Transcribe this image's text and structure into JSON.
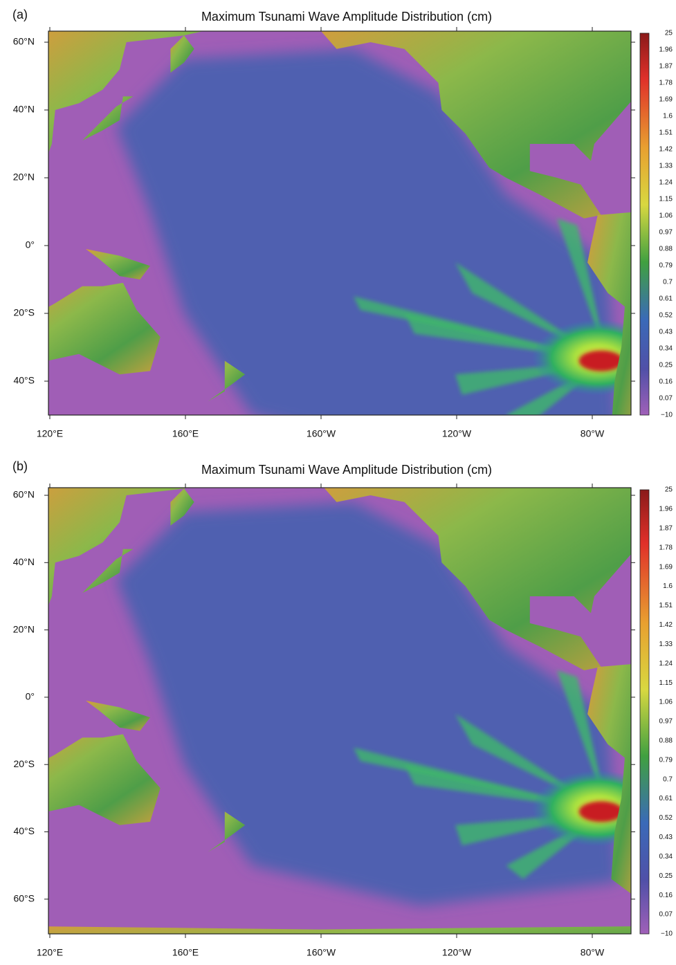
{
  "panels": [
    {
      "label": "(a)",
      "title": "Maximum Tsunami Wave Amplitude Distribution (cm)",
      "lat_labels": [
        "60°N",
        "40°N",
        "20°N",
        "0°",
        "20°S",
        "40°S"
      ],
      "lon_labels": [
        "120°E",
        "160°E",
        "160°W",
        "120°W",
        "80°W"
      ],
      "colorbar_labels": [
        "25",
        "1.96",
        "1.87",
        "1.78",
        "1.69",
        "1.6",
        "1.51",
        "1.42",
        "1.33",
        "1.24",
        "1.15",
        "1.06",
        "0.97",
        "0.88",
        "0.79",
        "0.7",
        "0.61",
        "0.52",
        "0.43",
        "0.34",
        "0.25",
        "0.16",
        "0.07",
        "−10"
      ]
    },
    {
      "label": "(b)",
      "title": "Maximum Tsunami Wave Amplitude Distribution (cm)",
      "lat_labels": [
        "60°N",
        "40°N",
        "20°N",
        "0°",
        "20°S",
        "40°S",
        "60°S"
      ],
      "lon_labels": [
        "120°E",
        "160°E",
        "160°W",
        "120°W",
        "80°W"
      ],
      "colorbar_labels": [
        "25",
        "1.96",
        "1.87",
        "1.78",
        "1.69",
        "1.6",
        "1.51",
        "1.42",
        "1.33",
        "1.24",
        "1.15",
        "1.06",
        "0.97",
        "0.88",
        "0.79",
        "0.7",
        "0.61",
        "0.52",
        "0.43",
        "0.34",
        "0.25",
        "0.16",
        "0.07",
        "−10"
      ]
    }
  ]
}
